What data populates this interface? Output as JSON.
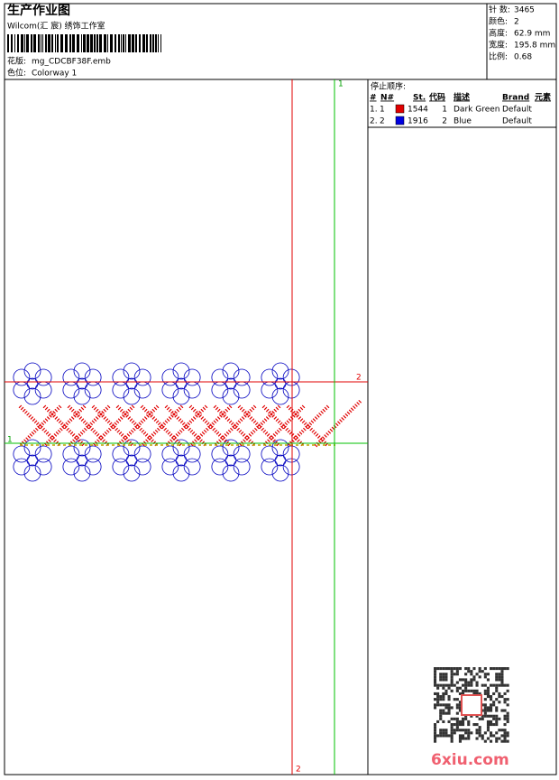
{
  "header": {
    "title": "生产作业图",
    "studio": "Wilcom(汇 宸) 绣饰工作室",
    "design_label": "花版:",
    "design": "mg_CDCBF38F.emb",
    "colorway_label": "色位:",
    "colorway": "Colorway 1"
  },
  "info": [
    {
      "label": "针 数:",
      "value": "3465"
    },
    {
      "label": "颜色:",
      "value": "2"
    },
    {
      "label": "高度:",
      "value": "62.9 mm"
    },
    {
      "label": "宽度:",
      "value": "195.8 mm"
    },
    {
      "label": "比例:",
      "value": "0.68"
    }
  ],
  "stop_sequence": {
    "title": "停止顺序:",
    "headers": [
      "#",
      "N#",
      "St.",
      "代码",
      "描述",
      "Brand",
      "元素"
    ],
    "rows": [
      {
        "no": "1.",
        "n": "1",
        "color": "#e00000",
        "st": 1544,
        "code": 1,
        "desc": "Dark Green",
        "brand": "Default"
      },
      {
        "no": "2.",
        "n": "2",
        "color": "#0000e0",
        "st": 1916,
        "code": 2,
        "desc": "Blue",
        "brand": "Default"
      }
    ]
  },
  "guides": {
    "green_v": "1",
    "red_h": "2",
    "green_h": "1",
    "red_v": "2"
  },
  "watermark": "6xiu.com"
}
